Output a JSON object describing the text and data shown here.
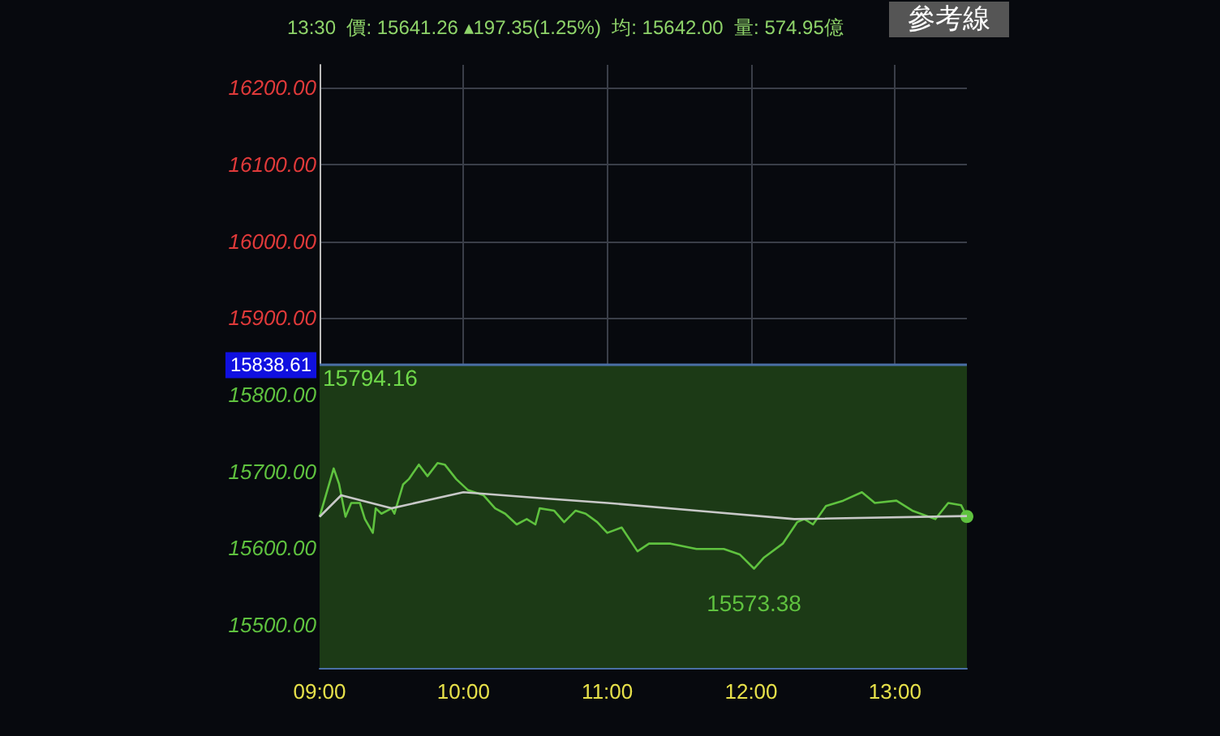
{
  "chart_data": {
    "type": "line",
    "title": "13:30  價: 15641.26 ▴197.35(1.25%)  均: 15642.00  量: 574.95億",
    "annotations": [
      "參考線",
      "15794.16",
      {
        "text": "15573.38",
        "x": 12.02,
        "y": 15573.38
      }
    ],
    "xlim": [
      9,
      13.5
    ],
    "xticks": [
      {
        "value": 9,
        "label": "09:00"
      },
      {
        "value": 10,
        "label": "10:00"
      },
      {
        "value": 11,
        "label": "11:00"
      },
      {
        "value": 12,
        "label": "12:00"
      },
      {
        "value": 13,
        "label": "13:00"
      }
    ],
    "ylim": [
      15444,
      16230
    ],
    "yticks": [
      {
        "value": 15500,
        "label": "15500.00"
      },
      {
        "value": 15600,
        "label": "15600.00"
      },
      {
        "value": 15700,
        "label": "15700.00"
      },
      {
        "value": 15800,
        "label": "15800.00"
      },
      {
        "value": 15900,
        "label": "15900.00"
      },
      {
        "value": 16000,
        "label": "16000.00"
      },
      {
        "value": 16100,
        "label": "16100.00"
      },
      {
        "value": 16200,
        "label": "16200.00"
      }
    ],
    "ref_lines": [
      {
        "axis": "y",
        "value": 15838.61,
        "label": "15838.61",
        "color": "#4a6fa5"
      }
    ],
    "bands": [
      {
        "axis": "y",
        "from": 15444,
        "to": 15838.61,
        "color": "#1c3a16"
      }
    ],
    "grid": true,
    "marker": "none",
    "series": [
      {
        "color": "#5fc23f",
        "x": [
          9,
          9.098,
          9.135,
          9.18,
          9.22,
          9.28,
          9.315,
          9.37,
          9.39,
          9.43,
          9.5,
          9.52,
          9.58,
          9.62,
          9.69,
          9.75,
          9.82,
          9.87,
          9.95,
          10.03,
          10.14,
          10.22,
          10.29,
          10.37,
          10.44,
          10.5,
          10.53,
          10.63,
          10.7,
          10.78,
          10.85,
          10.93,
          11.0,
          11.1,
          11.21,
          11.29,
          11.44,
          11.62,
          11.81,
          11.92,
          12.02,
          12.09,
          12.22,
          12.32,
          12.37,
          12.43,
          12.52,
          12.64,
          12.77,
          12.86,
          13.01,
          13.12,
          13.28,
          13.37,
          13.46,
          13.5
        ],
        "values": [
          15641,
          15704,
          15684,
          15641,
          15659,
          15659,
          15638,
          15620,
          15652,
          15645,
          15652,
          15645,
          15683,
          15690,
          15709,
          15694,
          15711,
          15709,
          15690,
          15676,
          15669,
          15652,
          15645,
          15631,
          15638,
          15631,
          15652,
          15649,
          15634,
          15649,
          15645,
          15634,
          15620,
          15627,
          15596,
          15606,
          15606,
          15599,
          15599,
          15592,
          15573.38,
          15588,
          15606,
          15634,
          15638,
          15631,
          15655,
          15662,
          15673,
          15659,
          15662,
          15649,
          15638,
          15659,
          15656,
          15641.26
        ]
      },
      {
        "color": "#c8c8c8",
        "x": [
          9,
          9.15,
          9.5,
          10.0,
          10.55,
          11.0,
          11.62,
          12.3,
          13.5
        ],
        "values": [
          15641,
          15669,
          15652,
          15673,
          15665,
          15659,
          15649,
          15638,
          15642
        ]
      }
    ]
  }
}
